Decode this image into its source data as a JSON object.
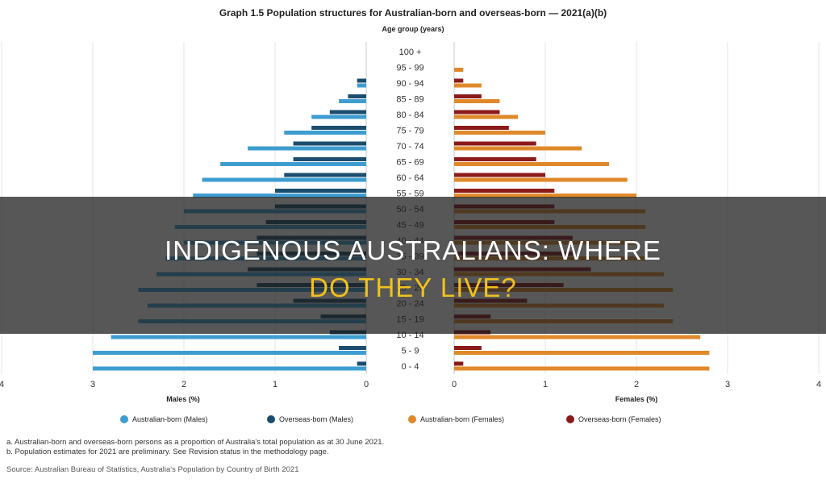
{
  "chart_data": {
    "type": "bar",
    "orientation": "horizontal-population-pyramid",
    "title": "Graph 1.5 Population structures for Australian-born and overseas-born — 2021(a)(b)",
    "category_axis_label": "Age group (years)",
    "left_axis_label": "Males (%)",
    "right_axis_label": "Females (%)",
    "left_ticks": [
      "4",
      "3",
      "2",
      "1",
      "0"
    ],
    "right_ticks": [
      "0",
      "1",
      "2",
      "3",
      "4"
    ],
    "xlim": [
      0,
      4
    ],
    "grid": true,
    "legend_position": "bottom",
    "categories": [
      "100 +",
      "95 - 99",
      "90 - 94",
      "85 - 89",
      "80 - 84",
      "75 - 79",
      "70 - 74",
      "65 - 69",
      "60 - 64",
      "55 - 59",
      "50 - 54",
      "45 - 49",
      "40 - 44",
      "35 - 39",
      "30 - 34",
      "25 - 29",
      "20 - 24",
      "15 - 19",
      "10 - 14",
      "5 - 9",
      "0 - 4"
    ],
    "series": [
      {
        "name": "Australian-born (Males)",
        "side": "left",
        "color": "#3e9dd0",
        "values": [
          0,
          0,
          0.1,
          0.3,
          0.6,
          0.9,
          1.3,
          1.6,
          1.8,
          1.9,
          2.0,
          2.1,
          2.0,
          2.2,
          2.3,
          2.5,
          2.4,
          2.5,
          2.8,
          3.0,
          3.0
        ]
      },
      {
        "name": "Overseas-born (Males)",
        "side": "left",
        "color": "#1b4d6e",
        "values": [
          0,
          0,
          0.1,
          0.2,
          0.4,
          0.6,
          0.8,
          0.8,
          0.9,
          1.0,
          1.0,
          1.1,
          1.2,
          1.2,
          1.3,
          1.2,
          0.8,
          0.5,
          0.4,
          0.3,
          0.1
        ]
      },
      {
        "name": "Australian-born (Females)",
        "side": "right",
        "color": "#e0892b",
        "values": [
          0,
          0.1,
          0.3,
          0.5,
          0.7,
          1.0,
          1.4,
          1.7,
          1.9,
          2.0,
          2.1,
          2.1,
          2.0,
          2.1,
          2.3,
          2.4,
          2.3,
          2.4,
          2.7,
          2.8,
          2.8
        ]
      },
      {
        "name": "Overseas-born (Females)",
        "side": "right",
        "color": "#8c1a1a",
        "values": [
          0,
          0,
          0.1,
          0.3,
          0.5,
          0.6,
          0.9,
          0.9,
          1.0,
          1.1,
          1.1,
          1.1,
          1.3,
          1.3,
          1.5,
          1.2,
          0.8,
          0.4,
          0.4,
          0.3,
          0.1
        ]
      }
    ]
  },
  "footnotes": {
    "a": "a. Australian-born and overseas-born persons as a proportion of Australia's total population as at 30 June 2021.",
    "b": "b. Population estimates for 2021 are preliminary. See Revision status in the methodology page."
  },
  "source": "Source: Australian Bureau of Statistics, Australia's Population by Country of Birth 2021",
  "banner": {
    "line1": "INDIGENOUS AUSTRALIANS: WHERE",
    "line2": "DO THEY LIVE?"
  }
}
